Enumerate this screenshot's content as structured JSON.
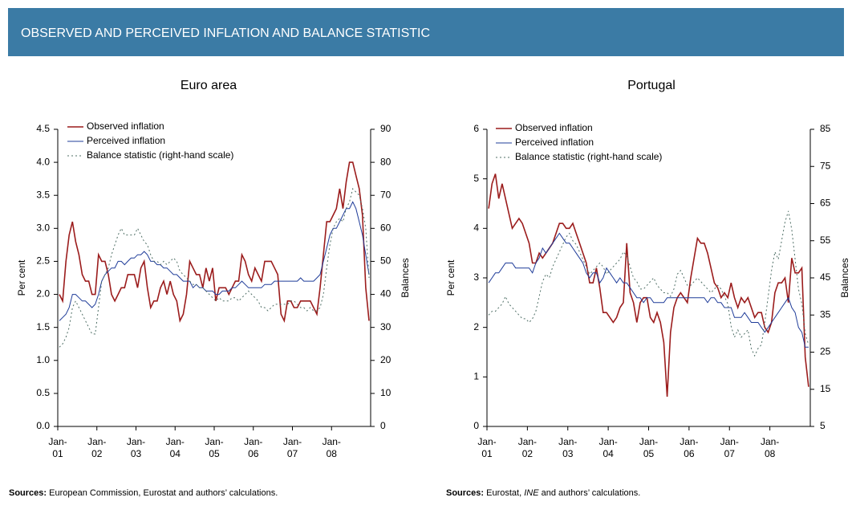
{
  "header": {
    "title": "OBSERVED AND PERCEIVED INFLATION AND BALANCE STATISTIC"
  },
  "chart_data": [
    {
      "type": "line",
      "title": "Euro area",
      "ylabel": "Per cent",
      "y2label": "Balances",
      "source_label": "Sources:",
      "source": "European Commission, Eurostat and authors’ calculations.",
      "categories": [
        "Jan-01",
        null,
        null,
        null,
        null,
        null,
        null,
        null,
        null,
        null,
        null,
        null,
        "Jan-02",
        null,
        null,
        null,
        null,
        null,
        null,
        null,
        null,
        null,
        null,
        null,
        "Jan-03",
        null,
        null,
        null,
        null,
        null,
        null,
        null,
        null,
        null,
        null,
        null,
        "Jan-04",
        null,
        null,
        null,
        null,
        null,
        null,
        null,
        null,
        null,
        null,
        null,
        "Jan-05",
        null,
        null,
        null,
        null,
        null,
        null,
        null,
        null,
        null,
        null,
        null,
        "Jan-06",
        null,
        null,
        null,
        null,
        null,
        null,
        null,
        null,
        null,
        null,
        null,
        "Jan-07",
        null,
        null,
        null,
        null,
        null,
        null,
        null,
        null,
        null,
        null,
        null,
        "Jan-08",
        null,
        null,
        null,
        null,
        null,
        null,
        null,
        null,
        null,
        null,
        null
      ],
      "ylim": [
        0,
        4.5
      ],
      "yticks": [
        {
          "value": 0,
          "label": "0.0"
        },
        {
          "value": 0.5,
          "label": "0.5"
        },
        {
          "value": 1,
          "label": "1.0"
        },
        {
          "value": 1.5,
          "label": "1.5"
        },
        {
          "value": 2,
          "label": "2.0"
        },
        {
          "value": 2.5,
          "label": "2.5"
        },
        {
          "value": 3,
          "label": "3.0"
        },
        {
          "value": 3.5,
          "label": "3.5"
        },
        {
          "value": 4,
          "label": "4.0"
        },
        {
          "value": 4.5,
          "label": "4.5"
        }
      ],
      "y2lim": [
        0,
        90
      ],
      "y2ticks": [
        0,
        10,
        20,
        30,
        40,
        50,
        60,
        70,
        80,
        90
      ],
      "series": [
        {
          "name": "Observed inflation",
          "color": "#9b1c1c",
          "values": [
            2.0,
            1.9,
            2.5,
            2.9,
            3.1,
            2.8,
            2.6,
            2.3,
            2.2,
            2.2,
            2.0,
            2.0,
            2.6,
            2.5,
            2.5,
            2.3,
            2.0,
            1.9,
            2.0,
            2.1,
            2.1,
            2.3,
            2.3,
            2.3,
            2.1,
            2.4,
            2.5,
            2.1,
            1.8,
            1.9,
            1.9,
            2.1,
            2.2,
            2.0,
            2.2,
            2.0,
            1.9,
            1.6,
            1.7,
            2.0,
            2.5,
            2.4,
            2.3,
            2.3,
            2.1,
            2.4,
            2.2,
            2.4,
            1.9,
            2.1,
            2.1,
            2.1,
            2.0,
            2.1,
            2.2,
            2.2,
            2.6,
            2.5,
            2.3,
            2.2,
            2.4,
            2.3,
            2.2,
            2.5,
            2.5,
            2.5,
            2.4,
            2.3,
            1.7,
            1.6,
            1.9,
            1.9,
            1.8,
            1.8,
            1.9,
            1.9,
            1.9,
            1.9,
            1.8,
            1.7,
            2.1,
            2.6,
            3.1,
            3.1,
            3.2,
            3.3,
            3.6,
            3.3,
            3.7,
            4.0,
            4.0,
            3.8,
            3.6,
            3.2,
            2.1,
            1.6
          ]
        },
        {
          "name": "Perceived inflation",
          "color": "#1f3c99",
          "values": [
            1.6,
            1.65,
            1.7,
            1.8,
            2.0,
            2.0,
            1.95,
            1.9,
            1.9,
            1.85,
            1.8,
            1.85,
            2.0,
            2.2,
            2.3,
            2.35,
            2.4,
            2.4,
            2.5,
            2.5,
            2.45,
            2.5,
            2.55,
            2.55,
            2.6,
            2.6,
            2.65,
            2.6,
            2.5,
            2.5,
            2.45,
            2.45,
            2.4,
            2.4,
            2.35,
            2.3,
            2.3,
            2.25,
            2.2,
            2.2,
            2.2,
            2.1,
            2.15,
            2.1,
            2.1,
            2.05,
            2.05,
            2.05,
            2.0,
            2.0,
            2.05,
            2.05,
            2.05,
            2.1,
            2.1,
            2.15,
            2.2,
            2.15,
            2.1,
            2.1,
            2.1,
            2.1,
            2.1,
            2.15,
            2.15,
            2.15,
            2.2,
            2.2,
            2.2,
            2.2,
            2.2,
            2.2,
            2.2,
            2.2,
            2.25,
            2.2,
            2.2,
            2.2,
            2.2,
            2.25,
            2.3,
            2.5,
            2.7,
            2.9,
            3.0,
            3.0,
            3.1,
            3.2,
            3.3,
            3.3,
            3.4,
            3.3,
            3.1,
            2.9,
            2.6,
            2.3
          ]
        },
        {
          "name": "Balance statistic (right-hand scale)",
          "color": "#4f6f66",
          "axis": "y2",
          "dashed": true,
          "values": [
            24,
            25,
            27,
            30,
            36,
            38,
            36,
            34,
            32,
            30,
            28,
            28,
            36,
            44,
            46,
            48,
            52,
            55,
            58,
            60,
            58,
            58,
            58,
            58,
            60,
            58,
            56,
            55,
            52,
            50,
            50,
            49,
            50,
            49,
            50,
            51,
            50,
            47,
            46,
            45,
            44,
            43,
            43,
            42,
            42,
            41,
            40,
            39,
            38,
            39,
            38,
            38,
            38,
            39,
            39,
            38,
            39,
            40,
            41,
            40,
            39,
            38,
            36,
            36,
            35,
            36,
            37,
            37,
            37,
            37,
            37,
            38,
            38,
            37,
            36,
            36,
            35,
            36,
            35,
            35,
            36,
            40,
            48,
            55,
            60,
            62,
            63,
            62,
            66,
            68,
            72,
            71,
            70,
            66,
            60,
            45
          ]
        }
      ]
    },
    {
      "type": "line",
      "title": "Portugal",
      "ylabel": "Per cent",
      "y2label": "Balances",
      "source_label": "Sources:",
      "source": [
        "Eurostat, ",
        "INE",
        "  and authors’ calculations."
      ],
      "categories": [
        "Jan-01",
        null,
        null,
        null,
        null,
        null,
        null,
        null,
        null,
        null,
        null,
        null,
        "Jan-02",
        null,
        null,
        null,
        null,
        null,
        null,
        null,
        null,
        null,
        null,
        null,
        "Jan-03",
        null,
        null,
        null,
        null,
        null,
        null,
        null,
        null,
        null,
        null,
        null,
        "Jan-04",
        null,
        null,
        null,
        null,
        null,
        null,
        null,
        null,
        null,
        null,
        null,
        "Jan-05",
        null,
        null,
        null,
        null,
        null,
        null,
        null,
        null,
        null,
        null,
        null,
        "Jan-06",
        null,
        null,
        null,
        null,
        null,
        null,
        null,
        null,
        null,
        null,
        null,
        "Jan-07",
        null,
        null,
        null,
        null,
        null,
        null,
        null,
        null,
        null,
        null,
        null,
        "Jan-08",
        null,
        null,
        null,
        null,
        null,
        null,
        null,
        null,
        null,
        null,
        null
      ],
      "ylim": [
        0,
        6
      ],
      "yticks": [
        0,
        1,
        2,
        3,
        4,
        5,
        6
      ],
      "y2lim": [
        5,
        85
      ],
      "y2ticks": [
        5,
        15,
        25,
        35,
        45,
        55,
        65,
        75,
        85
      ],
      "series": [
        {
          "name": "Observed inflation",
          "color": "#9b1c1c",
          "values": [
            4.4,
            4.9,
            5.1,
            4.6,
            4.9,
            4.6,
            4.3,
            4.0,
            4.1,
            4.2,
            4.1,
            3.9,
            3.7,
            3.3,
            3.3,
            3.5,
            3.4,
            3.5,
            3.6,
            3.7,
            3.9,
            4.1,
            4.1,
            4.0,
            4.0,
            4.1,
            3.9,
            3.7,
            3.5,
            3.3,
            2.9,
            2.9,
            3.2,
            2.8,
            2.3,
            2.3,
            2.2,
            2.1,
            2.2,
            2.4,
            2.5,
            3.7,
            2.7,
            2.5,
            2.1,
            2.5,
            2.6,
            2.6,
            2.2,
            2.1,
            2.3,
            2.1,
            1.7,
            0.6,
            1.9,
            2.4,
            2.6,
            2.7,
            2.6,
            2.5,
            3.0,
            3.4,
            3.8,
            3.7,
            3.7,
            3.5,
            3.2,
            2.9,
            2.8,
            2.6,
            2.7,
            2.6,
            2.9,
            2.6,
            2.4,
            2.6,
            2.5,
            2.6,
            2.4,
            2.2,
            2.3,
            2.3,
            2.0,
            1.9,
            2.1,
            2.7,
            2.9,
            2.9,
            3.0,
            2.5,
            3.4,
            3.1,
            3.1,
            3.2,
            1.4,
            0.8
          ]
        },
        {
          "name": "Perceived inflation",
          "color": "#1f3c99",
          "values": [
            2.9,
            3.0,
            3.1,
            3.1,
            3.2,
            3.3,
            3.3,
            3.3,
            3.2,
            3.2,
            3.2,
            3.2,
            3.2,
            3.1,
            3.3,
            3.4,
            3.6,
            3.5,
            3.6,
            3.7,
            3.8,
            3.9,
            3.8,
            3.7,
            3.7,
            3.6,
            3.5,
            3.4,
            3.3,
            3.1,
            3.0,
            3.1,
            3.1,
            2.9,
            3.0,
            3.2,
            3.1,
            3.0,
            2.9,
            3.0,
            2.9,
            2.9,
            2.8,
            2.7,
            2.6,
            2.6,
            2.5,
            2.6,
            2.6,
            2.5,
            2.5,
            2.5,
            2.5,
            2.6,
            2.6,
            2.6,
            2.6,
            2.6,
            2.6,
            2.6,
            2.6,
            2.6,
            2.6,
            2.6,
            2.6,
            2.5,
            2.6,
            2.6,
            2.5,
            2.5,
            2.4,
            2.4,
            2.4,
            2.2,
            2.2,
            2.2,
            2.3,
            2.2,
            2.1,
            2.1,
            2.1,
            2.0,
            1.9,
            2.0,
            2.1,
            2.2,
            2.3,
            2.4,
            2.5,
            2.6,
            2.4,
            2.3,
            2.0,
            1.9,
            1.6,
            1.6
          ]
        },
        {
          "name": "Balance statistic (right-hand scale)",
          "color": "#4f6f66",
          "axis": "y2",
          "dashed": true,
          "values": [
            35,
            36,
            36,
            37,
            38,
            40,
            38,
            37,
            36,
            35,
            34,
            34,
            33,
            34,
            36,
            40,
            44,
            46,
            45,
            48,
            50,
            52,
            54,
            56,
            57,
            55,
            54,
            52,
            50,
            48,
            46,
            47,
            48,
            49,
            48,
            46,
            47,
            48,
            49,
            50,
            52,
            51,
            48,
            45,
            44,
            42,
            42,
            43,
            44,
            45,
            43,
            42,
            41,
            41,
            40,
            42,
            46,
            47,
            45,
            43,
            43,
            44,
            45,
            44,
            43,
            42,
            41,
            42,
            43,
            42,
            40,
            38,
            32,
            29,
            31,
            29,
            30,
            31,
            26,
            24,
            26,
            27,
            33,
            40,
            47,
            52,
            50,
            55,
            60,
            63,
            58,
            50,
            42,
            38,
            30,
            27
          ]
        }
      ]
    }
  ]
}
